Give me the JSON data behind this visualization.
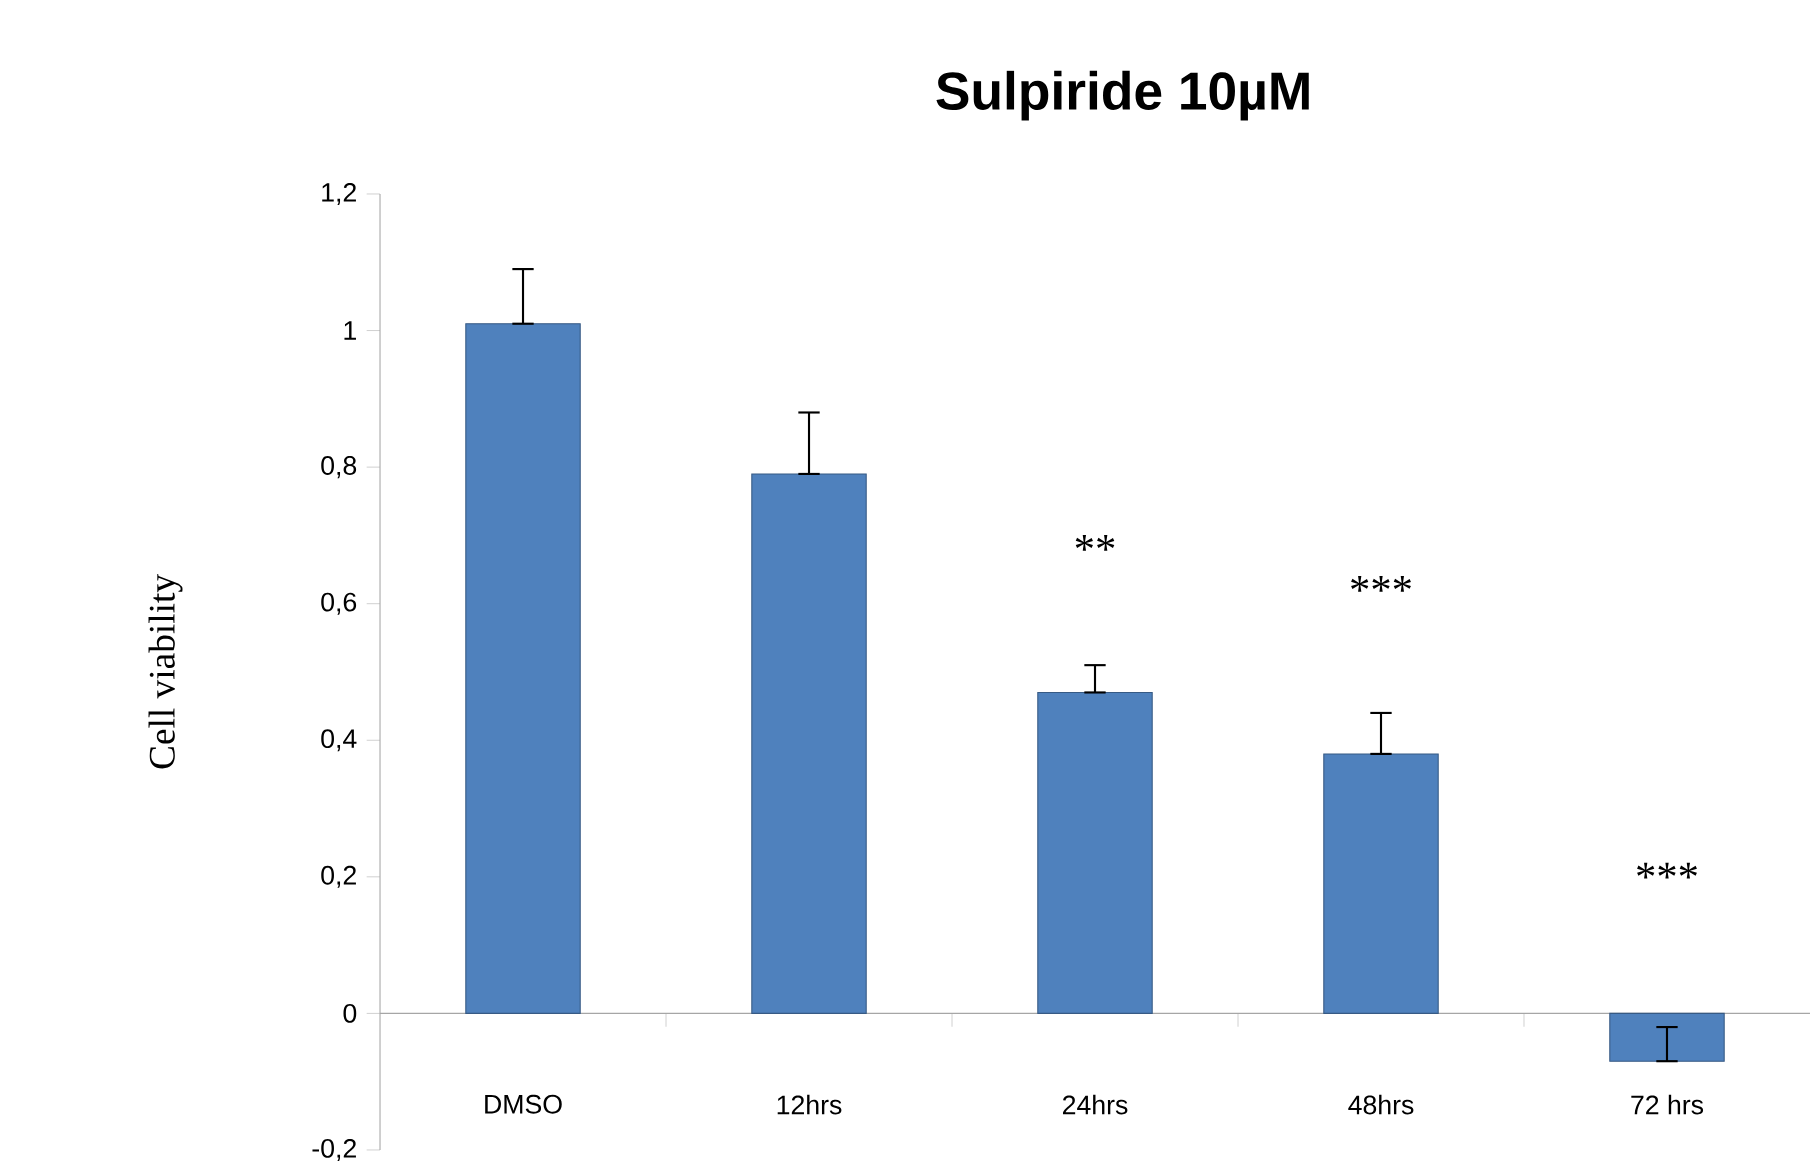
{
  "chart_data": {
    "type": "bar",
    "title": "Sulpiride 10µM",
    "ylabel": "Cell viability",
    "categories": [
      "DMSO",
      "12hrs",
      "24hrs",
      "48hrs",
      "72 hrs"
    ],
    "values": [
      1.01,
      0.79,
      0.47,
      0.38,
      -0.07
    ],
    "errors": [
      [
        1.01,
        1.09
      ],
      [
        0.79,
        0.88
      ],
      [
        0.47,
        0.51
      ],
      [
        0.38,
        0.44
      ],
      [
        -0.07,
        -0.02
      ]
    ],
    "color": "#4f81bd",
    "ylim": [
      -0.2,
      1.2
    ],
    "yticks": [
      {
        "value": -0.2,
        "label": "-0,2"
      },
      0,
      {
        "value": 0.2,
        "label": "0,2"
      },
      {
        "value": 0.4,
        "label": "0,4"
      },
      {
        "value": 0.6,
        "label": "0,6"
      },
      {
        "value": 0.8,
        "label": "0,8"
      },
      1,
      {
        "value": 1.2,
        "label": "1,2"
      }
    ],
    "annotations": [
      "**",
      "***",
      "***"
    ]
  }
}
